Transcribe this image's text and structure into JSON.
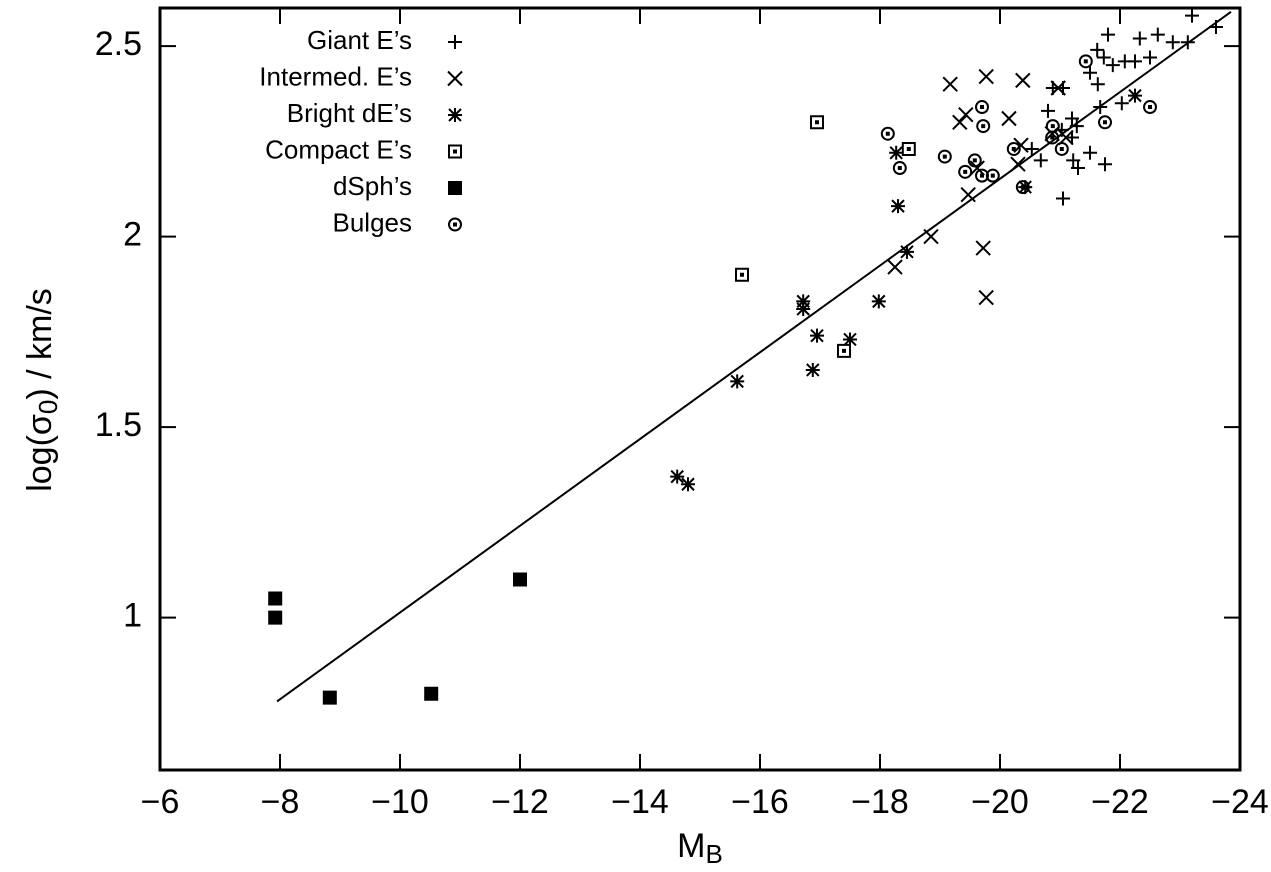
{
  "chart_data": {
    "type": "scatter",
    "x_label": {
      "main": "M",
      "sub": "B"
    },
    "y_label": {
      "pre": "log(σ",
      "sub": "0",
      "post": ") / km/s"
    },
    "xlim": [
      -6,
      -24
    ],
    "ylim": [
      0.6,
      2.6
    ],
    "xticks": [
      {
        "value": -6,
        "label": "−6"
      },
      {
        "value": -8,
        "label": "−8"
      },
      {
        "value": -10,
        "label": "−10"
      },
      {
        "value": -12,
        "label": "−12"
      },
      {
        "value": -14,
        "label": "−14"
      },
      {
        "value": -16,
        "label": "−16"
      },
      {
        "value": -18,
        "label": "−18"
      },
      {
        "value": -20,
        "label": "−20"
      },
      {
        "value": -22,
        "label": "−22"
      },
      {
        "value": -24,
        "label": "−24"
      }
    ],
    "yticks": [
      1,
      1.5,
      2,
      2.5
    ],
    "legend": "upper left",
    "fit_line": {
      "color": "#000000",
      "x": [
        -7.95,
        -23.85
      ],
      "values": [
        0.78,
        2.59
      ]
    },
    "series": [
      {
        "name": "Giant E’s",
        "marker": "plus",
        "color": "#000000",
        "x": [
          -23.2,
          -23.6,
          -22.33,
          -22.63,
          -22.88,
          -23.13,
          -21.8,
          -21.62,
          -21.73,
          -21.88,
          -22.08,
          -22.25,
          -22.5,
          -21.5,
          -21.63,
          -20.88,
          -21.05,
          -20.8,
          -21.2,
          -21.28,
          -21.2,
          -21.67,
          -22.03,
          -21.5,
          -21.22,
          -21.3,
          -21.75,
          -21.05,
          -20.68,
          -20.53,
          -21.03
        ],
        "values": [
          2.58,
          2.55,
          2.52,
          2.53,
          2.51,
          2.51,
          2.53,
          2.49,
          2.47,
          2.45,
          2.46,
          2.46,
          2.47,
          2.43,
          2.4,
          2.39,
          2.39,
          2.33,
          2.31,
          2.29,
          2.26,
          2.34,
          2.35,
          2.22,
          2.2,
          2.18,
          2.19,
          2.1,
          2.2,
          2.23,
          2.28
        ]
      },
      {
        "name": "Intermed. E’s",
        "marker": "cross",
        "color": "#000000",
        "x": [
          -19.17,
          -19.77,
          -20.38,
          -19.33,
          -19.43,
          -20.15,
          -18.25,
          -18.85,
          -19.72,
          -19.77,
          -19.47,
          -19.62,
          -20.3,
          -20.35,
          -20.87,
          -20.97,
          -21.1
        ],
        "values": [
          2.4,
          2.42,
          2.41,
          2.3,
          2.32,
          2.31,
          1.92,
          2.0,
          1.97,
          1.84,
          2.11,
          2.18,
          2.19,
          2.24,
          2.27,
          2.39,
          2.26
        ]
      },
      {
        "name": "Bright dE’s",
        "marker": "asterisk",
        "color": "#000000",
        "x": [
          -14.62,
          -14.8,
          -15.62,
          -16.72,
          -16.72,
          -16.95,
          -16.88,
          -17.5,
          -17.98,
          -18.3,
          -18.27,
          -18.45,
          -20.42,
          -22.25
        ],
        "values": [
          1.37,
          1.35,
          1.62,
          1.83,
          1.81,
          1.74,
          1.65,
          1.73,
          1.83,
          2.08,
          2.22,
          1.96,
          2.13,
          2.37
        ]
      },
      {
        "name": "Compact E’s",
        "marker": "square-dot",
        "color": "#000000",
        "x": [
          -16.95,
          -15.7,
          -17.4,
          -18.48
        ],
        "values": [
          2.3,
          1.9,
          1.7,
          2.23
        ]
      },
      {
        "name": "dSph’s",
        "marker": "filled-square",
        "color": "#000000",
        "x": [
          -7.92,
          -7.92,
          -8.83,
          -10.52,
          -12.0
        ],
        "values": [
          1.05,
          1.0,
          0.79,
          0.8,
          1.1
        ]
      },
      {
        "name": "Bulges",
        "marker": "circle-dot",
        "color": "#000000",
        "x": [
          -21.43,
          -19.7,
          -18.13,
          -19.08,
          -18.33,
          -19.58,
          -19.42,
          -19.7,
          -19.88,
          -19.72,
          -20.23,
          -20.38,
          -20.88,
          -20.87,
          -21.03,
          -21.75,
          -22.5
        ],
        "values": [
          2.46,
          2.34,
          2.27,
          2.21,
          2.18,
          2.2,
          2.17,
          2.16,
          2.16,
          2.29,
          2.23,
          2.13,
          2.29,
          2.26,
          2.23,
          2.3,
          2.34
        ]
      }
    ]
  }
}
